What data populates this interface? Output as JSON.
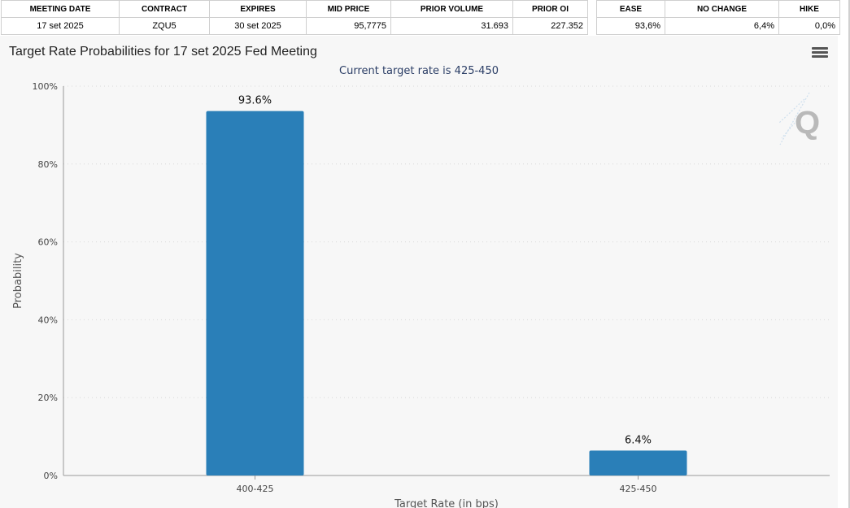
{
  "table_left": {
    "headers": [
      "MEETING DATE",
      "CONTRACT",
      "EXPIRES",
      "MID PRICE",
      "PRIOR VOLUME",
      "PRIOR OI"
    ],
    "row": [
      "17 set 2025",
      "ZQU5",
      "30 set 2025",
      "95,7775",
      "31.693",
      "227.352"
    ]
  },
  "table_right": {
    "headers": [
      "EASE",
      "NO CHANGE",
      "HIKE"
    ],
    "row": [
      "93,6%",
      "6,4%",
      "0,0%"
    ]
  },
  "colors": {
    "bar": "#2a7fb8",
    "panel_bg": "#f7f7f7",
    "grid": "#d8d8d8",
    "subtitle": "#2b3e66"
  },
  "icons": {
    "menu": "hamburger-menu-icon",
    "logo": "q-logo-icon"
  },
  "chart_data": {
    "type": "bar",
    "title": "Target Rate Probabilities for 17 set 2025 Fed Meeting",
    "subtitle": "Current target rate is 425-450",
    "xlabel": "Target Rate (in bps)",
    "ylabel": "Probability",
    "categories": [
      "400-425",
      "425-450"
    ],
    "values": [
      93.6,
      6.4
    ],
    "data_labels": [
      "93.6%",
      "6.4%"
    ],
    "ylim": [
      0,
      100
    ],
    "yticks": [
      0,
      20,
      40,
      60,
      80,
      100
    ],
    "ytick_labels": [
      "0%",
      "20%",
      "40%",
      "60%",
      "80%",
      "100%"
    ],
    "grid": true,
    "legend": "none"
  }
}
